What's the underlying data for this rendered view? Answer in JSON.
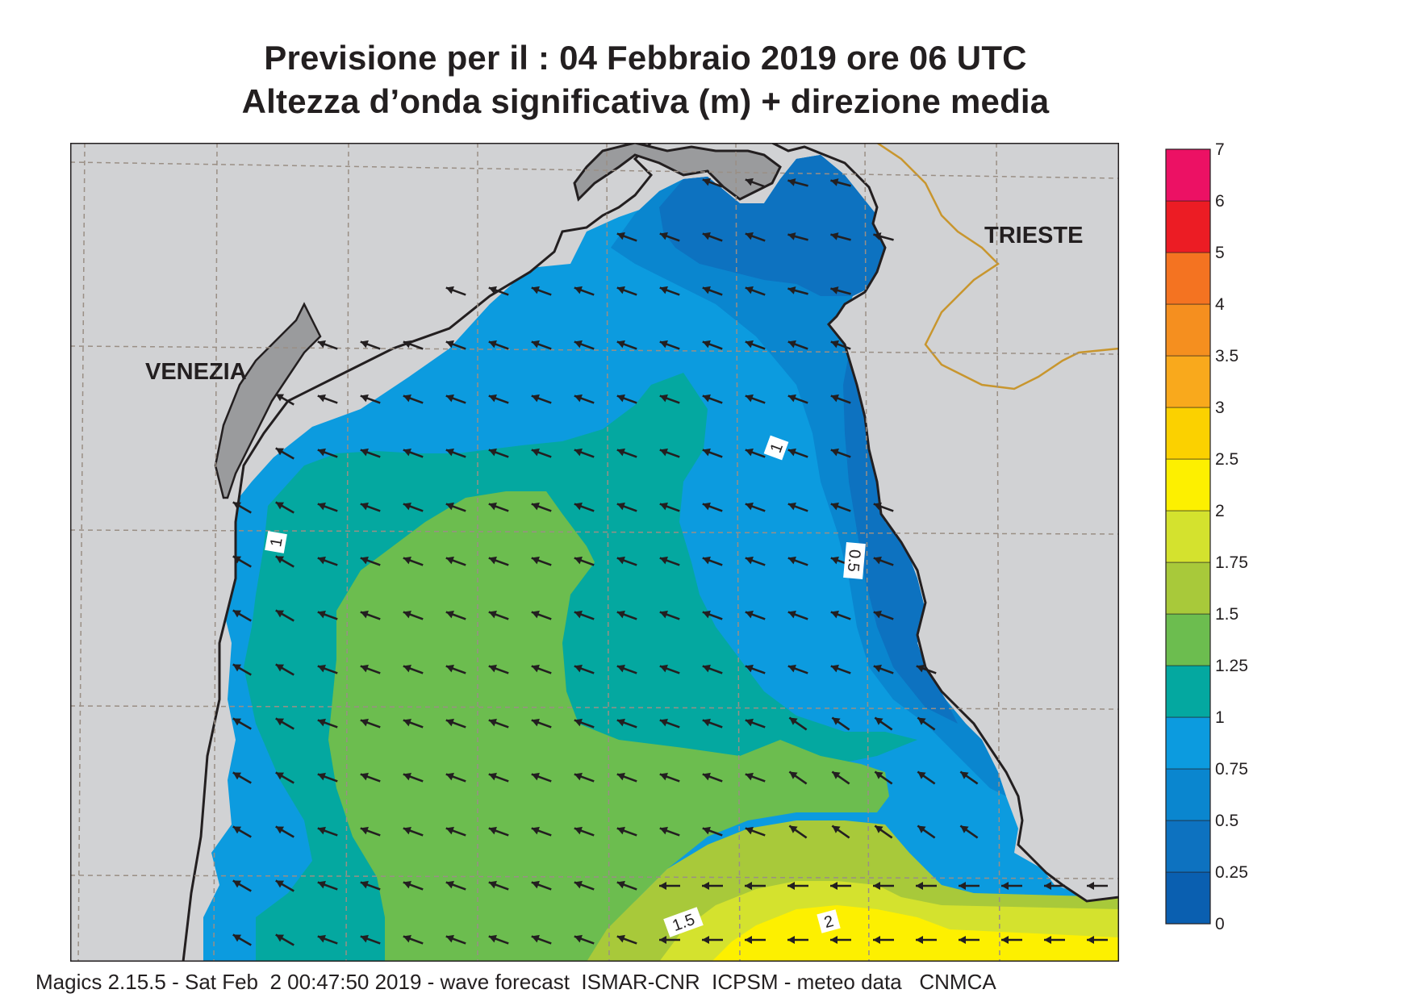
{
  "title": {
    "line1": "Previsione per il  :  04  Febbraio 2019   ore 06 UTC",
    "line2": "Altezza d’onda significativa (m) + direzione media"
  },
  "footer": "Magics 2.15.5 - Sat Feb  2 00:47:50 2019 - wave forecast  ISMAR-CNR  ICPSM - meteo data   CNMCA",
  "places": {
    "venezia": "VENEZIA",
    "trieste": "TRIESTE"
  },
  "contour_labels": {
    "c1_left": "1",
    "c1_top": "1",
    "c05": "0.5",
    "c15": "1.5",
    "c2": "2"
  },
  "colorbar": {
    "levels": [
      "0",
      "0.25",
      "0.5",
      "0.75",
      "1",
      "1.25",
      "1.5",
      "1.75",
      "2",
      "2.5",
      "3",
      "3.5",
      "4",
      "5",
      "6",
      "7"
    ],
    "colors": [
      "#0a5fb0",
      "#0d72c0",
      "#0a86cf",
      "#0c9bdf",
      "#04a8a0",
      "#6cbd4f",
      "#a8c93a",
      "#d4e22e",
      "#fdf000",
      "#fbd100",
      "#f9a91c",
      "#f58f1f",
      "#f47321",
      "#ec1c24",
      "#ec1164"
    ]
  },
  "colors": {
    "land": "#d1d2d4",
    "coast": "#231f20",
    "border": "#c8962e",
    "grid": "#9a8f85",
    "arrow": "#231f20"
  }
}
